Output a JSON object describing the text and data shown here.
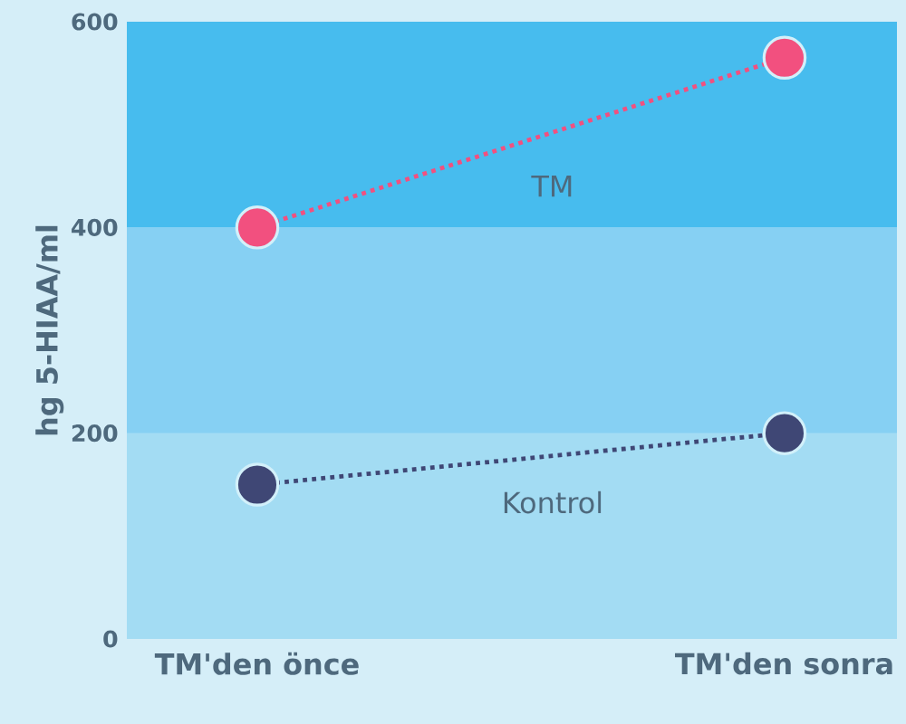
{
  "chart_data": {
    "type": "line",
    "ylabel": "hg 5-HIAA/ml",
    "categories": [
      "TM'den önce",
      "TM'den sonra"
    ],
    "series": [
      {
        "name": "TM",
        "color": "#f2507f",
        "values": [
          400,
          565
        ]
      },
      {
        "name": "Kontrol",
        "color": "#3f4775",
        "values": [
          150,
          200
        ]
      }
    ],
    "ylim": [
      0,
      600
    ],
    "yticks": [
      0,
      200,
      400,
      600
    ],
    "bands": [
      {
        "axis": "y",
        "from": 0,
        "to": 200,
        "color": "#a3dcf3"
      },
      {
        "axis": "y",
        "from": 200,
        "to": 400,
        "color": "#86d0f3"
      },
      {
        "axis": "y",
        "from": 400,
        "to": 600,
        "color": "#47bcee"
      }
    ],
    "marker": "circle",
    "line_style": "dotted",
    "legend": false
  }
}
